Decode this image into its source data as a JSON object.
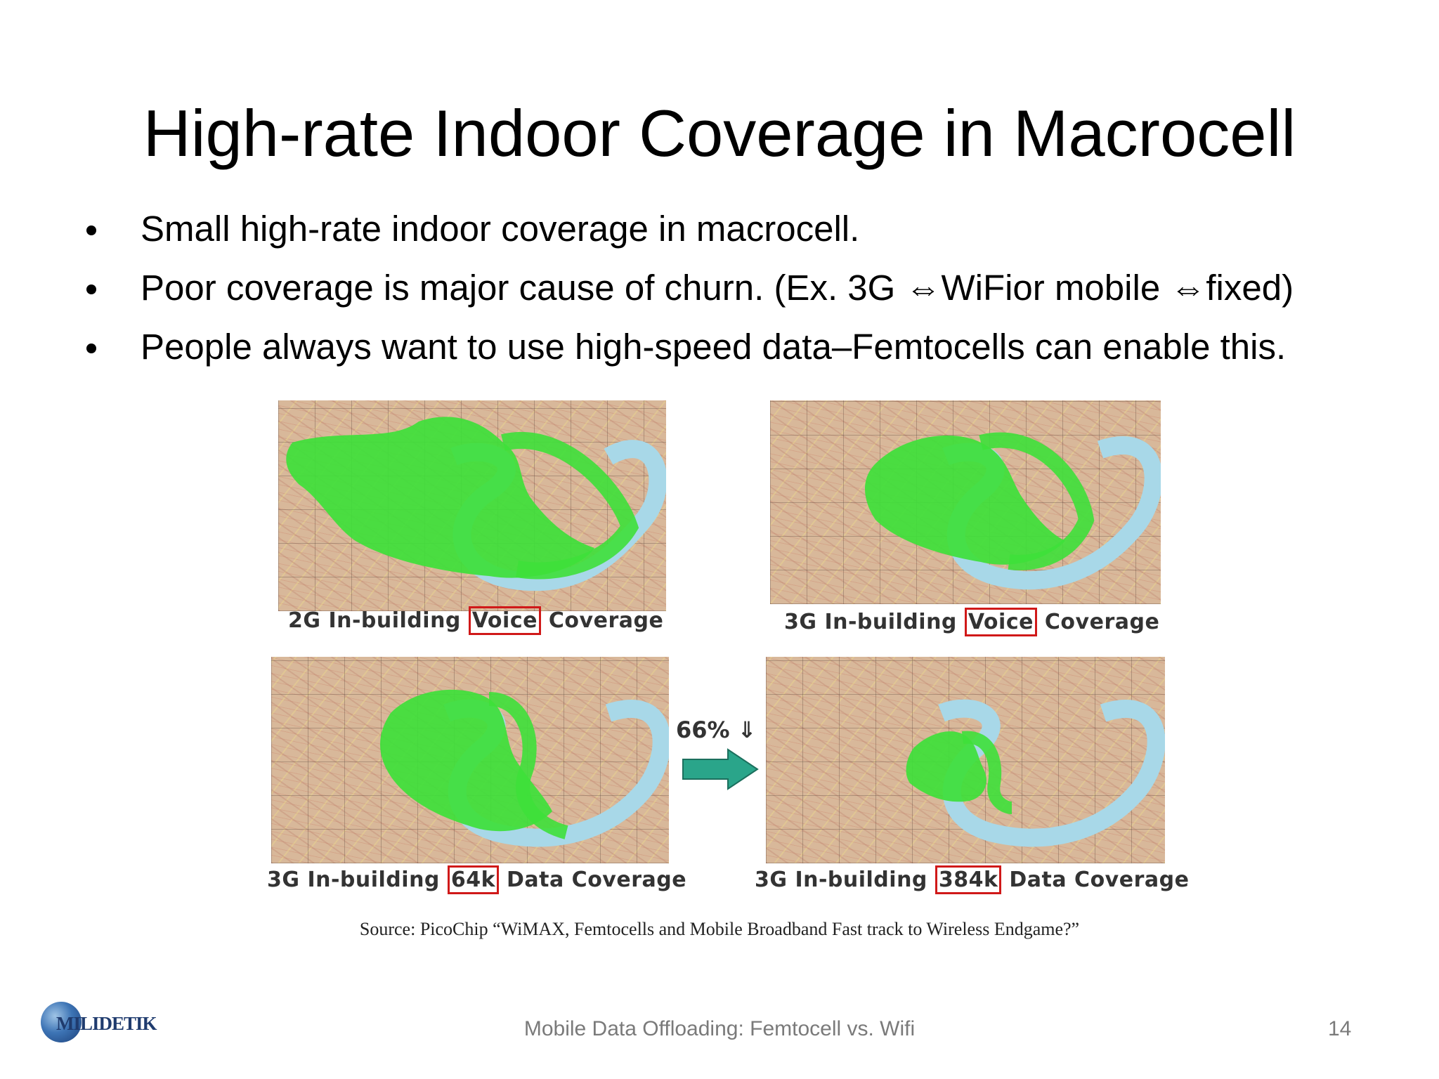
{
  "slide": {
    "title": "High-rate Indoor Coverage in Macrocell",
    "bullets": [
      "Small high-rate indoor coverage in macrocell.",
      "Poor coverage is major cause of churn. (Ex. 3G ⇔WiFior mobile ⇔fixed)",
      "People always want to use high-speed data–Femtocells can enable this."
    ]
  },
  "figure": {
    "maps": [
      {
        "caption_pre": "2G In-building ",
        "caption_box": "Voice",
        "caption_post": " Coverage",
        "coverage": "large"
      },
      {
        "caption_pre": "3G In-building ",
        "caption_box": "Voice",
        "caption_post": " Coverage",
        "coverage": "medium"
      },
      {
        "caption_pre": "3G In-building ",
        "caption_box": "64k",
        "caption_post": " Data Coverage",
        "coverage": "medium"
      },
      {
        "caption_pre": "3G In-building ",
        "caption_box": "384k",
        "caption_post": " Data Coverage",
        "coverage": "small"
      }
    ],
    "reduction_label": "66% ⇓",
    "source": "Source: PicoChip “WiMAX, Femtocells and Mobile Broadband Fast track to Wireless Endgame?”",
    "colors": {
      "coverage": "#3ee03a",
      "river": "#a8d8e8",
      "highlight_box": "#d01919",
      "arrow": "#2aa58a"
    }
  },
  "footer": {
    "logo_text": "MILIDETIK",
    "center_text": "Mobile Data Offloading: Femtocell vs. Wifi",
    "page_number": "14"
  }
}
